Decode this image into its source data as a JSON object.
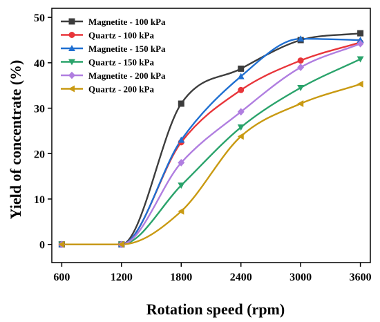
{
  "chart_data": {
    "type": "scatter",
    "xlabel": "Rotation speed (rpm)",
    "ylabel": "Yield of concentrate (%)",
    "xlim": [
      500,
      3700
    ],
    "ylim": [
      -4,
      52
    ],
    "xticks": [
      600,
      1200,
      1800,
      2400,
      3000,
      3600
    ],
    "yticks": [
      0,
      10,
      20,
      30,
      40,
      50
    ],
    "tick_labels_x": [
      "600",
      "1200",
      "1800",
      "2400",
      "3000",
      "3600"
    ],
    "tick_labels_y": [
      "0",
      "10",
      "20",
      "30",
      "40",
      "50"
    ],
    "legend_position": "top-left",
    "grid": false,
    "fit_curves": true,
    "series": [
      {
        "name": "Magnetite - 100 kPa",
        "color": "#3d3d3d",
        "marker": "square",
        "x": [
          600,
          1200,
          1800,
          2400,
          3000,
          3600
        ],
        "y": [
          0,
          0,
          31,
          38.7,
          45,
          46.5
        ]
      },
      {
        "name": "Quartz - 100 kPa",
        "color": "#e8353a",
        "marker": "circle",
        "x": [
          600,
          1200,
          1800,
          2400,
          3000,
          3600
        ],
        "y": [
          0,
          0,
          22.5,
          34,
          40.5,
          44.5
        ]
      },
      {
        "name": "Magnetite - 150 kPa",
        "color": "#1f6fd1",
        "marker": "triangle-up",
        "x": [
          600,
          1200,
          1800,
          2400,
          3000,
          3600
        ],
        "y": [
          0,
          0,
          23,
          37,
          45.3,
          45
        ]
      },
      {
        "name": "Quartz - 150 kPa",
        "color": "#2aa36b",
        "marker": "triangle-down",
        "x": [
          600,
          1200,
          1800,
          2400,
          3000,
          3600
        ],
        "y": [
          0,
          0,
          13,
          25.8,
          34.5,
          40.8
        ]
      },
      {
        "name": "Magnetite - 200 kPa",
        "color": "#b07ee0",
        "marker": "diamond",
        "x": [
          600,
          1200,
          1800,
          2400,
          3000,
          3600
        ],
        "y": [
          0,
          0,
          18,
          29.2,
          39,
          44.2
        ]
      },
      {
        "name": "Quartz - 200 kPa",
        "color": "#c99a12",
        "marker": "triangle-left",
        "x": [
          600,
          1200,
          1800,
          2400,
          3000,
          3600
        ],
        "y": [
          0,
          0,
          7.3,
          23.8,
          31,
          35.3
        ]
      }
    ]
  }
}
